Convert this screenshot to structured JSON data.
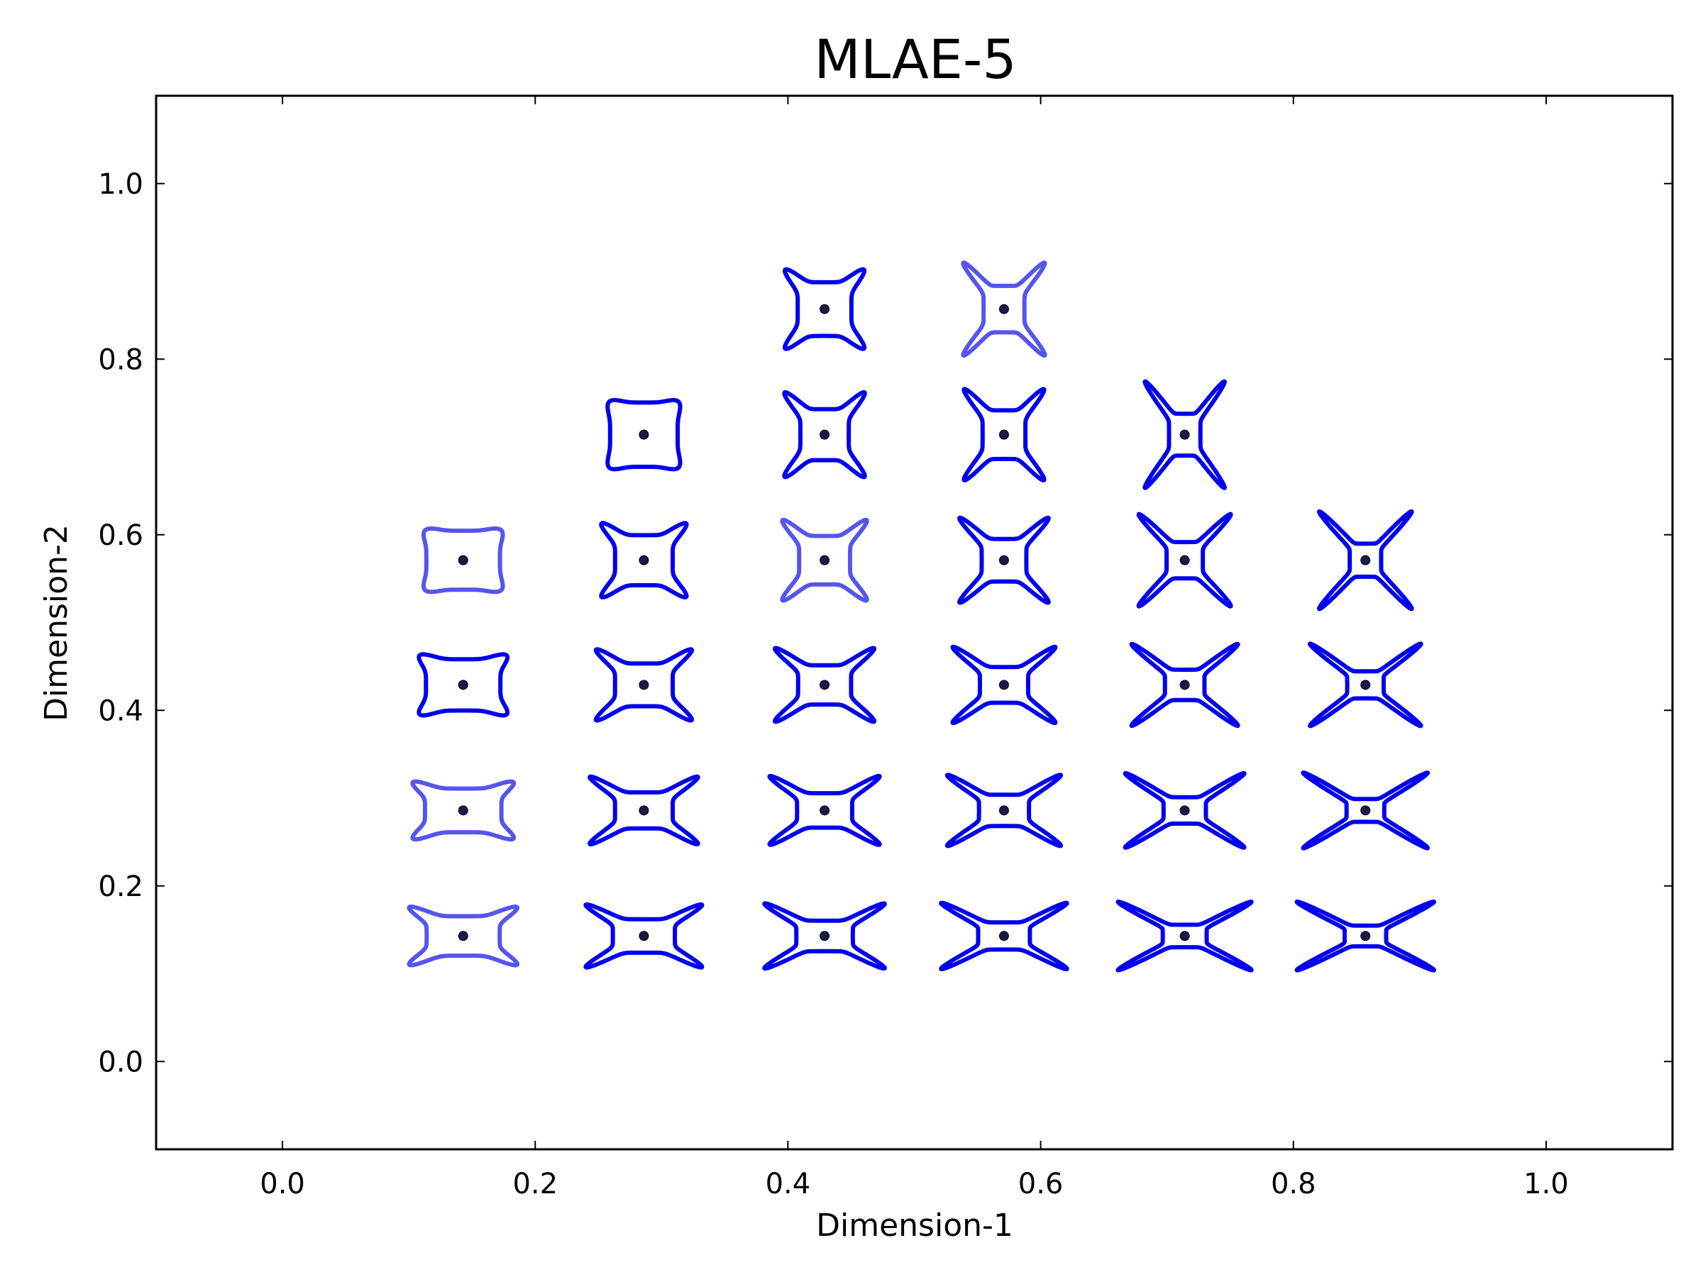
{
  "chart_data": {
    "type": "scatter",
    "title": "MLAE-5",
    "xlabel": "Dimension-1",
    "ylabel": "Dimension-2",
    "xlim": [
      -0.1,
      1.1
    ],
    "ylim": [
      -0.1,
      1.1
    ],
    "xticks": [
      "0.0",
      "0.2",
      "0.4",
      "0.6",
      "0.8",
      "1.0"
    ],
    "yticks": [
      "0.0",
      "0.2",
      "0.4",
      "0.6",
      "0.8",
      "1.0"
    ],
    "grid": false,
    "marker_color": "#0000ee",
    "light_marker_color": "#5555ee",
    "points": [
      {
        "x": 0.143,
        "y": 0.143,
        "shape": 0.35,
        "aspect": 1.85,
        "light": true
      },
      {
        "x": 0.286,
        "y": 0.143,
        "shape": 0.55,
        "aspect": 1.85,
        "light": false
      },
      {
        "x": 0.429,
        "y": 0.143,
        "shape": 0.65,
        "aspect": 1.85,
        "light": false
      },
      {
        "x": 0.571,
        "y": 0.143,
        "shape": 0.75,
        "aspect": 1.9,
        "light": false
      },
      {
        "x": 0.714,
        "y": 0.143,
        "shape": 0.9,
        "aspect": 1.95,
        "light": false
      },
      {
        "x": 0.857,
        "y": 0.143,
        "shape": 0.95,
        "aspect": 2.0,
        "light": false
      },
      {
        "x": 0.143,
        "y": 0.286,
        "shape": 0.25,
        "aspect": 1.75,
        "light": true
      },
      {
        "x": 0.286,
        "y": 0.286,
        "shape": 0.55,
        "aspect": 1.6,
        "light": false
      },
      {
        "x": 0.429,
        "y": 0.286,
        "shape": 0.6,
        "aspect": 1.6,
        "light": false
      },
      {
        "x": 0.571,
        "y": 0.286,
        "shape": 0.7,
        "aspect": 1.6,
        "light": false
      },
      {
        "x": 0.714,
        "y": 0.286,
        "shape": 0.85,
        "aspect": 1.6,
        "light": false
      },
      {
        "x": 0.857,
        "y": 0.286,
        "shape": 0.95,
        "aspect": 1.65,
        "light": false
      },
      {
        "x": 0.143,
        "y": 0.429,
        "shape": 0.15,
        "aspect": 1.45,
        "light": false
      },
      {
        "x": 0.286,
        "y": 0.429,
        "shape": 0.45,
        "aspect": 1.35,
        "light": false
      },
      {
        "x": 0.429,
        "y": 0.429,
        "shape": 0.55,
        "aspect": 1.35,
        "light": false
      },
      {
        "x": 0.571,
        "y": 0.429,
        "shape": 0.65,
        "aspect": 1.35,
        "light": false
      },
      {
        "x": 0.714,
        "y": 0.429,
        "shape": 0.82,
        "aspect": 1.3,
        "light": false
      },
      {
        "x": 0.857,
        "y": 0.429,
        "shape": 0.9,
        "aspect": 1.35,
        "light": false
      },
      {
        "x": 0.143,
        "y": 0.571,
        "shape": 0.05,
        "aspect": 1.25,
        "light": true
      },
      {
        "x": 0.286,
        "y": 0.571,
        "shape": 0.35,
        "aspect": 1.15,
        "light": false
      },
      {
        "x": 0.429,
        "y": 0.571,
        "shape": 0.45,
        "aspect": 1.05,
        "light": true
      },
      {
        "x": 0.571,
        "y": 0.571,
        "shape": 0.6,
        "aspect": 1.05,
        "light": false
      },
      {
        "x": 0.714,
        "y": 0.571,
        "shape": 0.78,
        "aspect": 1.0,
        "light": false
      },
      {
        "x": 0.857,
        "y": 0.571,
        "shape": 0.88,
        "aspect": 0.95,
        "light": false
      },
      {
        "x": 0.286,
        "y": 0.714,
        "shape": 0.05,
        "aspect": 1.05,
        "light": false
      },
      {
        "x": 0.429,
        "y": 0.714,
        "shape": 0.45,
        "aspect": 0.95,
        "light": false
      },
      {
        "x": 0.571,
        "y": 0.714,
        "shape": 0.55,
        "aspect": 0.88,
        "light": false
      },
      {
        "x": 0.714,
        "y": 0.714,
        "shape": 0.78,
        "aspect": 0.75,
        "light": false
      },
      {
        "x": 0.429,
        "y": 0.857,
        "shape": 0.35,
        "aspect": 1.0,
        "light": false
      },
      {
        "x": 0.571,
        "y": 0.857,
        "shape": 0.6,
        "aspect": 0.88,
        "light": true
      }
    ]
  }
}
